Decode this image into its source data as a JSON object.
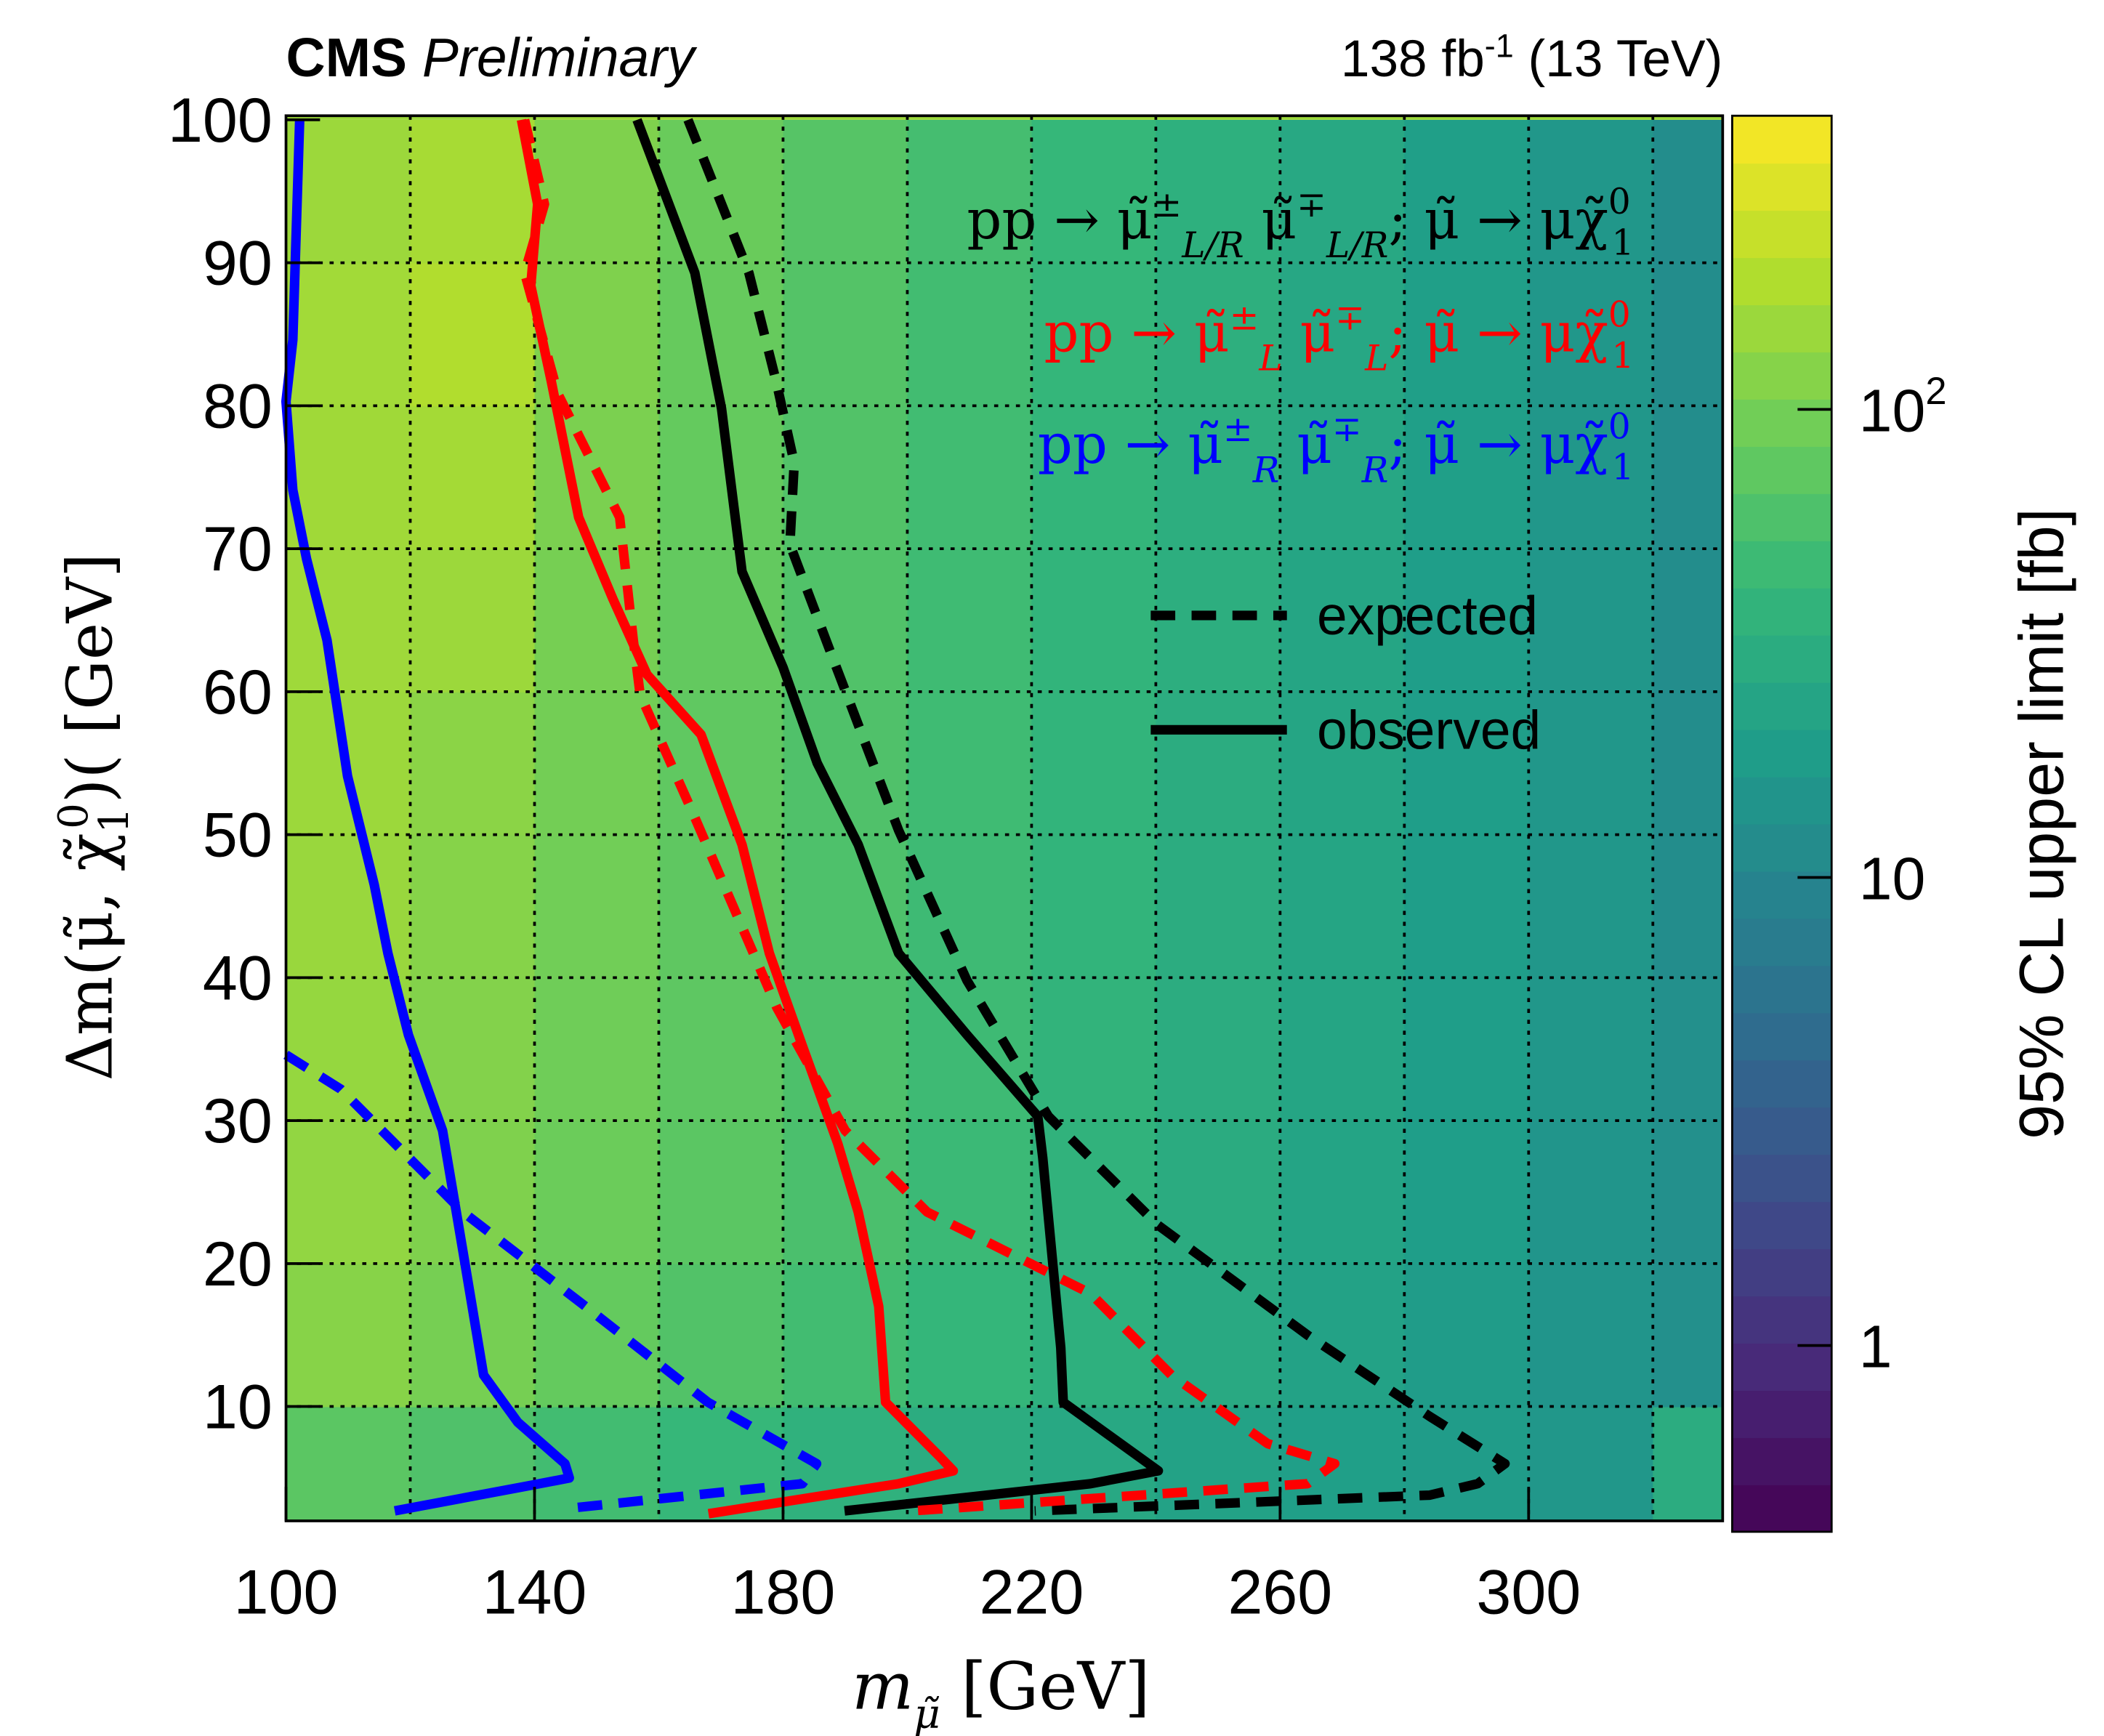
{
  "header": {
    "experiment": "CMS",
    "status": "Preliminary",
    "lumi": "138 fb",
    "lumi_sup": "-1",
    "energy": " (13 TeV)"
  },
  "chart_data": {
    "type": "heatmap",
    "xlabel": "m",
    "xlabel_sub": "μ̃",
    "xlabel_unit": " [GeV]",
    "ylabel": "Δm(μ̃, χ̃",
    "ylabel_sub": "1",
    "ylabel_sup": "0",
    "ylabel_end": ")( [GeV]",
    "zlabel": "95% CL upper limit [fb]",
    "xlim": [
      100,
      331
    ],
    "ylim": [
      2,
      100
    ],
    "zlim": [
      0.4,
      424
    ],
    "zscale": "log",
    "xticks": [
      "100",
      "140",
      "180",
      "220",
      "260",
      "300"
    ],
    "xtick_values": [
      100,
      140,
      180,
      220,
      260,
      300
    ],
    "yticks": [
      "10",
      "20",
      "30",
      "40",
      "50",
      "60",
      "70",
      "80",
      "90",
      "100"
    ],
    "ytick_values": [
      10,
      20,
      30,
      40,
      50,
      60,
      70,
      80,
      90,
      100
    ],
    "zticks": [
      {
        "label": "1",
        "value": 1
      },
      {
        "label": "10",
        "value": 10
      },
      {
        "label": "10",
        "sup": "2",
        "value": 100
      }
    ],
    "grid": true,
    "heat": {
      "x": [
        110,
        130,
        150,
        170,
        190,
        210,
        230,
        250,
        270,
        290,
        310,
        330
      ],
      "y": [
        5,
        15,
        25,
        35,
        45,
        55,
        65,
        75,
        85,
        95
      ],
      "z": [
        [
          70,
          60,
          50,
          42,
          35,
          30,
          26,
          22,
          20,
          18,
          16,
          30
        ],
        [
          120,
          100,
          80,
          62,
          50,
          40,
          33,
          27,
          22,
          18,
          15,
          13
        ],
        [
          135,
          110,
          88,
          70,
          56,
          45,
          36,
          29,
          23,
          19,
          15,
          13
        ],
        [
          140,
          115,
          92,
          73,
          58,
          47,
          37,
          30,
          24,
          19,
          16,
          13
        ],
        [
          145,
          118,
          94,
          74,
          59,
          47,
          38,
          30,
          24,
          19,
          16,
          12
        ],
        [
          150,
          125,
          96,
          75,
          60,
          48,
          38,
          30,
          24,
          19,
          16,
          12
        ],
        [
          155,
          150,
          100,
          78,
          61,
          48,
          38,
          31,
          24,
          19,
          16,
          12
        ],
        [
          158,
          165,
          105,
          80,
          62,
          49,
          39,
          31,
          25,
          20,
          16,
          12
        ],
        [
          160,
          190,
          110,
          82,
          64,
          50,
          40,
          32,
          25,
          20,
          16,
          12
        ],
        [
          150,
          170,
          110,
          85,
          66,
          52,
          41,
          33,
          26,
          20,
          16,
          12
        ]
      ]
    },
    "series": [
      {
        "name": "LR observed",
        "color": "#000000",
        "style": "solid",
        "points": [
          [
            156.5,
            100
          ],
          [
            165.8,
            89.3
          ],
          [
            170.1,
            79.8
          ],
          [
            173.4,
            68.4
          ],
          [
            180,
            61.7
          ],
          [
            185.5,
            55
          ],
          [
            192.1,
            49.3
          ],
          [
            198.6,
            41.7
          ],
          [
            209.6,
            36
          ],
          [
            221,
            30.3
          ],
          [
            221.8,
            27.4
          ],
          [
            224.7,
            14.1
          ],
          [
            225.1,
            10.3
          ],
          [
            240.4,
            5.5
          ],
          [
            229.5,
            4.6
          ],
          [
            189.9,
            2.7
          ]
        ]
      },
      {
        "name": "LR expected",
        "color": "#000000",
        "style": "dashed",
        "points": [
          [
            164.7,
            100
          ],
          [
            174.5,
            89.3
          ],
          [
            178.9,
            81.7
          ],
          [
            181.8,
            76
          ],
          [
            181.1,
            70.3
          ],
          [
            187.7,
            62.7
          ],
          [
            198.6,
            50.3
          ],
          [
            209.6,
            39.8
          ],
          [
            222.7,
            30.3
          ],
          [
            240.3,
            22.7
          ],
          [
            264.4,
            15
          ],
          [
            284.1,
            9.3
          ],
          [
            296.2,
            6
          ],
          [
            291.8,
            4.6
          ],
          [
            284.1,
            3.8
          ],
          [
            220.5,
            2.7
          ]
        ]
      },
      {
        "name": "L observed",
        "color": "#ff0000",
        "style": "solid",
        "points": [
          [
            137.9,
            100
          ],
          [
            140.5,
            94.1
          ],
          [
            139.4,
            88.4
          ],
          [
            142.7,
            81.7
          ],
          [
            147.1,
            72.2
          ],
          [
            152.6,
            66.5
          ],
          [
            158.1,
            61.2
          ],
          [
            166.8,
            57
          ],
          [
            173.4,
            49.3
          ],
          [
            177.8,
            41.7
          ],
          [
            183.3,
            35
          ],
          [
            188.8,
            28.4
          ],
          [
            192.1,
            23.6
          ],
          [
            195.4,
            17
          ],
          [
            196.5,
            10.3
          ],
          [
            205.2,
            6.5
          ],
          [
            207.4,
            5.5
          ],
          [
            198.6,
            4.6
          ],
          [
            168,
            2.5
          ]
        ]
      },
      {
        "name": "L expected",
        "color": "#ff0000",
        "style": "dashed",
        "points": [
          [
            138.4,
            100
          ],
          [
            141.6,
            94.1
          ],
          [
            138.4,
            89.3
          ],
          [
            143.8,
            80.8
          ],
          [
            153.7,
            72.2
          ],
          [
            155.9,
            63.6
          ],
          [
            157,
            59.8
          ],
          [
            165.8,
            51.2
          ],
          [
            179,
            37.9
          ],
          [
            190,
            29.3
          ],
          [
            203.2,
            23.6
          ],
          [
            229.5,
            17.9
          ],
          [
            242.5,
            12.2
          ],
          [
            258,
            7.4
          ],
          [
            268.8,
            6
          ],
          [
            264.4,
            4.6
          ],
          [
            200.8,
            2.7
          ]
        ]
      },
      {
        "name": "R observed",
        "color": "#0000ff",
        "style": "solid",
        "points": [
          [
            102.2,
            100
          ],
          [
            101.1,
            84.6
          ],
          [
            100,
            80.3
          ],
          [
            101.1,
            74.1
          ],
          [
            103.3,
            69.3
          ],
          [
            106.6,
            63.6
          ],
          [
            109.9,
            54.1
          ],
          [
            114.2,
            46.5
          ],
          [
            116.4,
            41.7
          ],
          [
            119.7,
            36
          ],
          [
            125.2,
            29.3
          ],
          [
            128.5,
            20.8
          ],
          [
            131.8,
            12.2
          ],
          [
            137.3,
            8.9
          ],
          [
            144.9,
            6
          ],
          [
            145.6,
            5
          ],
          [
            138.4,
            4.4
          ],
          [
            117.5,
            2.7
          ]
        ]
      },
      {
        "name": "R expected",
        "color": "#0000ff",
        "style": "dashed",
        "points": [
          [
            100,
            34.6
          ],
          [
            108.8,
            32.2
          ],
          [
            128.5,
            23.6
          ],
          [
            148.2,
            17
          ],
          [
            167.9,
            10.3
          ],
          [
            185.4,
            6
          ],
          [
            183.1,
            4.6
          ],
          [
            146,
            2.9
          ]
        ]
      }
    ],
    "processes": [
      {
        "color": "#000000",
        "parts": [
          "pp → μ̃",
          "±",
          "L/R",
          " μ̃",
          "∓",
          "L/R",
          "; μ̃ → μχ̃",
          "0",
          "1"
        ]
      },
      {
        "color": "#ff0000",
        "parts": [
          "pp → μ̃",
          "±",
          "L",
          " μ̃",
          "∓",
          "L",
          "; μ̃ → μχ̃",
          "0",
          "1"
        ]
      },
      {
        "color": "#0000ff",
        "parts": [
          "pp → μ̃",
          "±",
          "R",
          " μ̃",
          "∓",
          "R",
          "; μ̃ → μχ̃",
          "0",
          "1"
        ]
      }
    ],
    "legend": [
      {
        "label": "expected",
        "style": "dashed"
      },
      {
        "label": "observed",
        "style": "solid"
      }
    ],
    "legend_position": "top-right"
  }
}
